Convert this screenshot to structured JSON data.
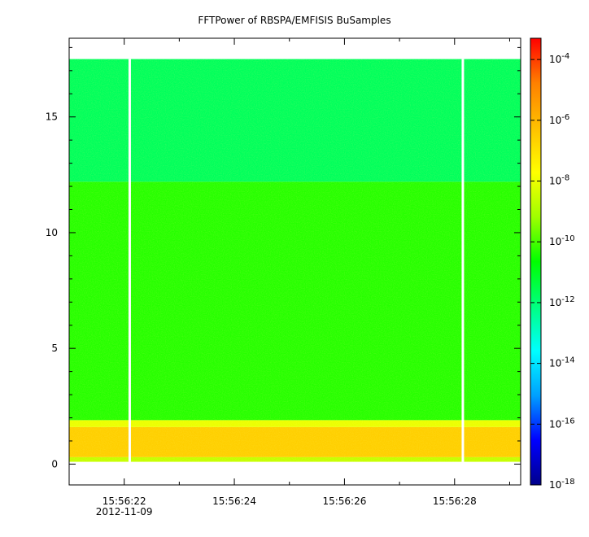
{
  "chart_data": {
    "type": "heatmap",
    "title": "FFTPower of RBSPA/EMFISIS  BuSamples",
    "xlabel": "",
    "ylabel": "",
    "x_tick_labels": [
      "15:56:22",
      "15:56:24",
      "15:56:26",
      "15:56:28"
    ],
    "x_tick_values_s": [
      22,
      24,
      26,
      28
    ],
    "x_date_label": "2012-11-09",
    "xlim_s": [
      21.0,
      29.2
    ],
    "y_tick_labels": [
      "0",
      "5",
      "10",
      "15"
    ],
    "y_tick_values": [
      0,
      5,
      10,
      15
    ],
    "ylim": [
      -0.9,
      18.4
    ],
    "data_y_range": [
      0.1,
      17.5
    ],
    "gap_columns_s": [
      22.1,
      28.15
    ],
    "colorbar": {
      "scale": "log",
      "tick_labels": [
        "10-4",
        "10-6",
        "10-8",
        "10-10",
        "10-12",
        "10-14",
        "10-16",
        "10-18"
      ],
      "tick_exponents": [
        -4,
        -6,
        -8,
        -10,
        -12,
        -14,
        -16,
        -18
      ],
      "range_exponent": [
        -18,
        -3.3
      ]
    },
    "power_bands": [
      {
        "y_from": 0.1,
        "y_to": 0.3,
        "log10_power": -8.6
      },
      {
        "y_from": 0.3,
        "y_to": 1.6,
        "log10_power": -6.6
      },
      {
        "y_from": 1.6,
        "y_to": 1.9,
        "log10_power": -8.0
      },
      {
        "y_from": 1.9,
        "y_to": 12.2,
        "log10_power": -10.3
      },
      {
        "y_from": 12.2,
        "y_to": 17.5,
        "log10_power": -11.7
      }
    ],
    "colormap": [
      "#00008b",
      "#0000ff",
      "#00a0ff",
      "#00ffff",
      "#00ff80",
      "#00ff00",
      "#a0ff00",
      "#ffff00",
      "#ffc000",
      "#ff8000",
      "#ff0000"
    ]
  }
}
